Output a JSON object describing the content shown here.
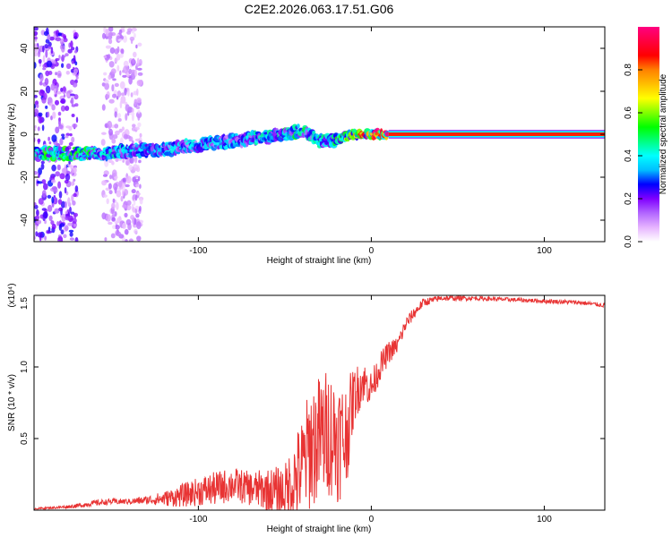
{
  "chart_data": [
    {
      "type": "heatmap",
      "title": "C2E2.2026.063.17.51.G06",
      "xlabel": "Height of straight line (km)",
      "ylabel": "Frequency (Hz)",
      "xlim": [
        -195,
        135
      ],
      "ylim": [
        -50,
        50
      ],
      "xticks": [
        -100,
        0,
        100
      ],
      "xtick_labels": [
        "-100",
        "0",
        "100"
      ],
      "yticks": [
        -40,
        -20,
        0,
        20,
        40
      ],
      "ytick_labels": [
        "-40",
        "-20",
        "0",
        "20",
        "40"
      ],
      "colorbar": {
        "label": "Normalized spectral amplitude",
        "range": [
          0,
          1
        ],
        "ticks": [
          0.0,
          0.2,
          0.4,
          0.6,
          0.8
        ],
        "tick_labels": [
          "0.0",
          "0.2",
          "0.4",
          "0.6",
          "0.8"
        ],
        "colors": [
          "#ffffff",
          "#e6b3ff",
          "#b266ff",
          "#8000ff",
          "#0000ff",
          "#00bfff",
          "#00ffff",
          "#00ff80",
          "#00ff00",
          "#80ff00",
          "#ffff00",
          "#ffbf00",
          "#ff8000",
          "#ff0000",
          "#ff0040",
          "#ff0080"
        ]
      },
      "ridge": {
        "x": [
          -195,
          -180,
          -160,
          -140,
          -120,
          -100,
          -80,
          -60,
          -50,
          -40,
          -30,
          -20,
          -15,
          -10,
          0,
          10,
          50,
          100,
          135
        ],
        "freq": [
          -9,
          -9,
          -9,
          -8,
          -7,
          -5,
          -3,
          -1,
          0,
          2,
          -3,
          -3,
          -1,
          0,
          0,
          0,
          0,
          0,
          0
        ],
        "amplitude": [
          0.45,
          0.5,
          0.45,
          0.35,
          0.35,
          0.35,
          0.35,
          0.4,
          0.45,
          0.45,
          0.4,
          0.45,
          0.55,
          0.7,
          0.85,
          0.95,
          1.0,
          1.0,
          1.0
        ]
      },
      "noise_bands": [
        {
          "x_from": -195,
          "x_to": -170,
          "amplitude": 0.15
        },
        {
          "x_from": -155,
          "x_to": -133,
          "amplitude": 0.08
        }
      ]
    },
    {
      "type": "line",
      "xlabel": "Height of straight line (km)",
      "ylabel": "SNR (10 * v/v)",
      "scale_label": "(x10⁴)",
      "xlim": [
        -195,
        135
      ],
      "ylim": [
        0,
        1.5
      ],
      "xticks": [
        -100,
        0,
        100
      ],
      "xtick_labels": [
        "-100",
        "0",
        "100"
      ],
      "yticks": [
        0.5,
        1.0,
        1.5
      ],
      "ytick_labels": [
        "0.5",
        "1.0",
        "1.5"
      ],
      "color": "#e83333",
      "series": [
        {
          "name": "SNR",
          "x": [
            -195,
            -180,
            -170,
            -160,
            -150,
            -140,
            -130,
            -120,
            -110,
            -100,
            -90,
            -80,
            -70,
            -60,
            -50,
            -45,
            -40,
            -35,
            -30,
            -25,
            -20,
            -15,
            -10,
            -5,
            0,
            5,
            10,
            15,
            20,
            25,
            30,
            40,
            60,
            80,
            100,
            120,
            135
          ],
          "y": [
            0.01,
            0.02,
            0.03,
            0.05,
            0.06,
            0.06,
            0.07,
            0.08,
            0.1,
            0.13,
            0.15,
            0.18,
            0.15,
            0.14,
            0.12,
            0.2,
            0.3,
            0.45,
            0.5,
            0.55,
            0.5,
            0.5,
            0.8,
            0.9,
            0.85,
            1.0,
            1.1,
            1.15,
            1.3,
            1.38,
            1.45,
            1.48,
            1.48,
            1.47,
            1.46,
            1.45,
            1.43
          ],
          "noise": [
            0.005,
            0.01,
            0.015,
            0.02,
            0.02,
            0.02,
            0.03,
            0.05,
            0.08,
            0.1,
            0.12,
            0.12,
            0.12,
            0.15,
            0.2,
            0.3,
            0.35,
            0.45,
            0.45,
            0.45,
            0.45,
            0.4,
            0.2,
            0.15,
            0.12,
            0.1,
            0.08,
            0.06,
            0.05,
            0.04,
            0.03,
            0.02,
            0.015,
            0.015,
            0.015,
            0.015,
            0.015
          ]
        }
      ]
    }
  ]
}
